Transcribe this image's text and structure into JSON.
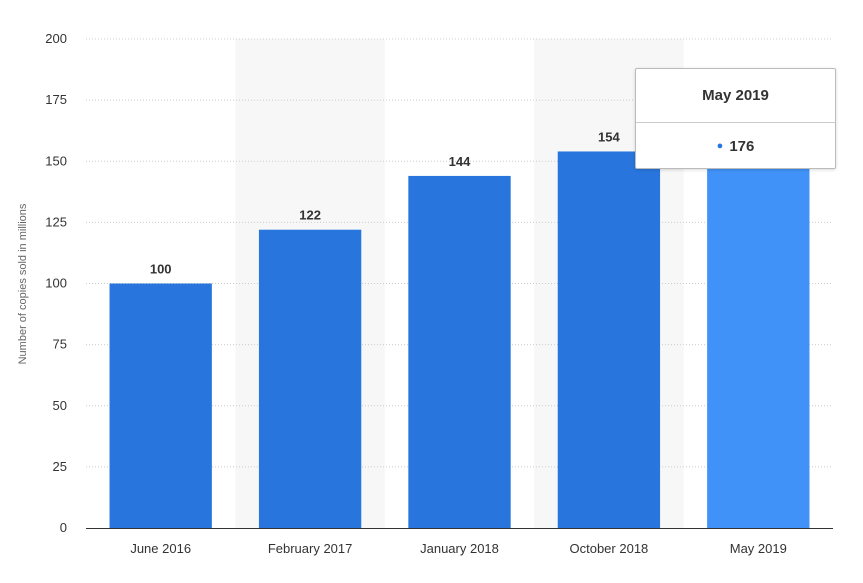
{
  "chart_data": {
    "type": "bar",
    "categories": [
      "June 2016",
      "February 2017",
      "January 2018",
      "October 2018",
      "May 2019"
    ],
    "values": [
      100,
      122,
      144,
      154,
      176
    ],
    "ylabel": "Number of copies sold in millions",
    "ylim": [
      0,
      200
    ],
    "yticks": [
      0,
      25,
      50,
      75,
      100,
      125,
      150,
      175,
      200
    ],
    "grid": true,
    "highlighted_category": "May 2019",
    "colors": {
      "bar": "#2876dd",
      "bar_highlight": "#4192f8",
      "band": "#f7f7f7",
      "grid": "#cccccc",
      "axis": "#333333"
    }
  },
  "tooltip": {
    "title": "May 2019",
    "value": "176"
  }
}
